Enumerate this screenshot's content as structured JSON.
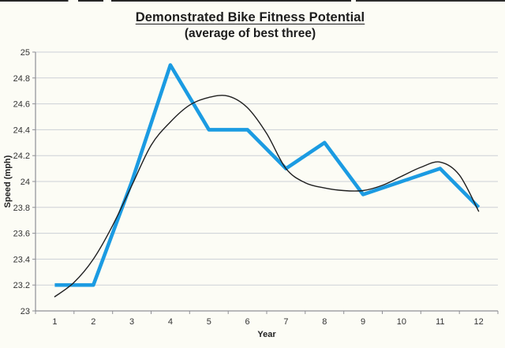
{
  "page": {
    "background": "#fcfcf5"
  },
  "colors": {
    "grid": "#cdd0d6",
    "axis": "#8f9096",
    "tick_text": "#333333",
    "title_text": "#1c1c1c"
  },
  "chart_data": {
    "type": "line",
    "title": "Demonstrated Bike Fitness Potential",
    "subtitle": "(average of best three)",
    "xlabel": "Year",
    "ylabel": "Speed (mph)",
    "x_categories": [
      "1",
      "2",
      "3",
      "4",
      "5",
      "6",
      "7",
      "8",
      "9",
      "10",
      "11",
      "12"
    ],
    "ylim": [
      23,
      25
    ],
    "yticks": {
      "values": [
        23,
        23.2,
        23.4,
        23.6,
        23.8,
        24,
        24.2,
        24.4,
        24.6,
        24.8,
        25
      ],
      "labels": [
        "23",
        "23.2",
        "23.4",
        "23.6",
        "23.8",
        "24",
        "24.2",
        "24.4",
        "24.6",
        "24.8",
        "25"
      ]
    },
    "grid": true,
    "legend": "none",
    "series": [
      {
        "name": "average-of-best-three",
        "type": "line",
        "color": "#1b9be2",
        "stroke_width": 4.6,
        "x": [
          1,
          2,
          3,
          4,
          5,
          6,
          7,
          8,
          9,
          10,
          11,
          12
        ],
        "values": [
          23.2,
          23.2,
          24.0,
          24.9,
          24.4,
          24.4,
          24.1,
          24.3,
          23.9,
          24.0,
          24.1,
          23.8
        ]
      },
      {
        "name": "polynomial-trendline",
        "type": "smooth-line",
        "color": "#1f1f1f",
        "stroke_width": 1.4,
        "x": [
          1,
          1.5,
          2,
          2.5,
          3,
          3.5,
          4,
          4.5,
          5,
          5.5,
          6,
          6.5,
          7,
          7.5,
          8,
          8.5,
          9,
          9.5,
          10,
          10.5,
          11,
          11.5,
          12
        ],
        "values": [
          23.11,
          23.22,
          23.4,
          23.66,
          23.97,
          24.28,
          24.46,
          24.59,
          24.65,
          24.66,
          24.57,
          24.37,
          24.1,
          23.99,
          23.95,
          23.93,
          23.93,
          23.97,
          24.04,
          24.11,
          24.15,
          24.05,
          23.77
        ]
      }
    ]
  }
}
